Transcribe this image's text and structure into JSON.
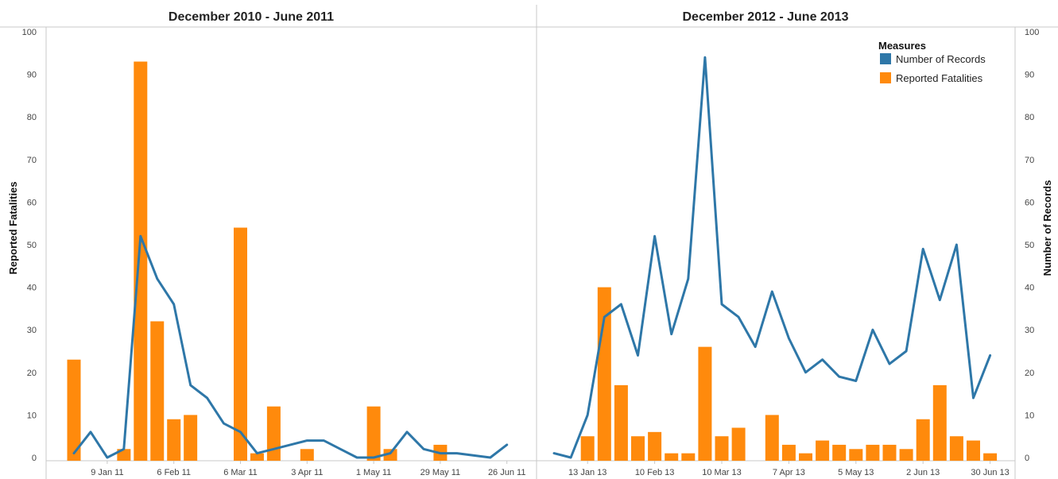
{
  "chart_data": {
    "type": "bar",
    "left_axis_title": "Reported Fatalities",
    "right_axis_title": "Number of Records",
    "y_ticks": [
      0,
      10,
      20,
      30,
      40,
      50,
      60,
      70,
      80,
      90,
      100
    ],
    "ylim": [
      0,
      100
    ],
    "legend": {
      "title": "Measures",
      "placement": "top-right",
      "items": [
        {
          "label": "Number of Records",
          "color": "#2e77a8"
        },
        {
          "label": "Reported Fatalities",
          "color": "#ff8a0c"
        }
      ]
    },
    "panels": [
      {
        "title": "December 2010 - June 2011",
        "x_start": "2010-12-26",
        "x_ticks": [
          "9 Jan 11",
          "6 Feb 11",
          "6 Mar 11",
          "3 Apr 11",
          "1 May 11",
          "29 May 11",
          "26 Jun 11"
        ],
        "bars": [
          {
            "x": "2010-12-26",
            "y": 23
          },
          {
            "x": "2011-01-16",
            "y": 2
          },
          {
            "x": "2011-01-23",
            "y": 93
          },
          {
            "x": "2011-01-30",
            "y": 32
          },
          {
            "x": "2011-02-06",
            "y": 9
          },
          {
            "x": "2011-02-13",
            "y": 10
          },
          {
            "x": "2011-03-06",
            "y": 54
          },
          {
            "x": "2011-03-13",
            "y": 1
          },
          {
            "x": "2011-03-20",
            "y": 12
          },
          {
            "x": "2011-04-03",
            "y": 2
          },
          {
            "x": "2011-05-01",
            "y": 12
          },
          {
            "x": "2011-05-08",
            "y": 2
          },
          {
            "x": "2011-05-29",
            "y": 3
          }
        ],
        "line": [
          {
            "x": "2010-12-26",
            "y": 1
          },
          {
            "x": "2011-01-02",
            "y": 6
          },
          {
            "x": "2011-01-09",
            "y": 0
          },
          {
            "x": "2011-01-16",
            "y": 2
          },
          {
            "x": "2011-01-23",
            "y": 52
          },
          {
            "x": "2011-01-30",
            "y": 42
          },
          {
            "x": "2011-02-06",
            "y": 36
          },
          {
            "x": "2011-02-13",
            "y": 17
          },
          {
            "x": "2011-02-20",
            "y": 14
          },
          {
            "x": "2011-02-27",
            "y": 8
          },
          {
            "x": "2011-03-06",
            "y": 6
          },
          {
            "x": "2011-03-13",
            "y": 1
          },
          {
            "x": "2011-03-20",
            "y": 2
          },
          {
            "x": "2011-03-27",
            "y": 3
          },
          {
            "x": "2011-04-03",
            "y": 4
          },
          {
            "x": "2011-04-10",
            "y": 4
          },
          {
            "x": "2011-04-17",
            "y": 2
          },
          {
            "x": "2011-04-24",
            "y": 0
          },
          {
            "x": "2011-05-01",
            "y": 0
          },
          {
            "x": "2011-05-08",
            "y": 1
          },
          {
            "x": "2011-05-15",
            "y": 6
          },
          {
            "x": "2011-05-22",
            "y": 2
          },
          {
            "x": "2011-05-29",
            "y": 1
          },
          {
            "x": "2011-06-05",
            "y": 1
          },
          {
            "x": "2011-06-19",
            "y": 0
          },
          {
            "x": "2011-06-26",
            "y": 3
          }
        ]
      },
      {
        "title": "December 2012 - June 2013",
        "x_start": "2012-12-30",
        "x_ticks": [
          "13 Jan 13",
          "10 Feb 13",
          "10 Mar 13",
          "7 Apr 13",
          "5 May 13",
          "2 Jun 13",
          "30 Jun 13"
        ],
        "bars": [
          {
            "x": "2013-01-13",
            "y": 5
          },
          {
            "x": "2013-01-20",
            "y": 40
          },
          {
            "x": "2013-01-27",
            "y": 17
          },
          {
            "x": "2013-02-03",
            "y": 5
          },
          {
            "x": "2013-02-10",
            "y": 6
          },
          {
            "x": "2013-02-17",
            "y": 1
          },
          {
            "x": "2013-02-24",
            "y": 1
          },
          {
            "x": "2013-03-03",
            "y": 26
          },
          {
            "x": "2013-03-10",
            "y": 5
          },
          {
            "x": "2013-03-17",
            "y": 7
          },
          {
            "x": "2013-03-31",
            "y": 10
          },
          {
            "x": "2013-04-07",
            "y": 3
          },
          {
            "x": "2013-04-14",
            "y": 1
          },
          {
            "x": "2013-04-21",
            "y": 4
          },
          {
            "x": "2013-04-28",
            "y": 3
          },
          {
            "x": "2013-05-05",
            "y": 2
          },
          {
            "x": "2013-05-12",
            "y": 3
          },
          {
            "x": "2013-05-19",
            "y": 3
          },
          {
            "x": "2013-05-26",
            "y": 2
          },
          {
            "x": "2013-06-02",
            "y": 9
          },
          {
            "x": "2013-06-09",
            "y": 17
          },
          {
            "x": "2013-06-16",
            "y": 5
          },
          {
            "x": "2013-06-23",
            "y": 4
          },
          {
            "x": "2013-06-30",
            "y": 1
          }
        ],
        "line": [
          {
            "x": "2012-12-30",
            "y": 1
          },
          {
            "x": "2013-01-06",
            "y": 0
          },
          {
            "x": "2013-01-13",
            "y": 10
          },
          {
            "x": "2013-01-20",
            "y": 33
          },
          {
            "x": "2013-01-27",
            "y": 36
          },
          {
            "x": "2013-02-03",
            "y": 24
          },
          {
            "x": "2013-02-10",
            "y": 52
          },
          {
            "x": "2013-02-17",
            "y": 29
          },
          {
            "x": "2013-02-24",
            "y": 42
          },
          {
            "x": "2013-03-03",
            "y": 94
          },
          {
            "x": "2013-03-10",
            "y": 36
          },
          {
            "x": "2013-03-17",
            "y": 33
          },
          {
            "x": "2013-03-24",
            "y": 26
          },
          {
            "x": "2013-03-31",
            "y": 39
          },
          {
            "x": "2013-04-07",
            "y": 28
          },
          {
            "x": "2013-04-14",
            "y": 20
          },
          {
            "x": "2013-04-21",
            "y": 23
          },
          {
            "x": "2013-04-28",
            "y": 19
          },
          {
            "x": "2013-05-05",
            "y": 18
          },
          {
            "x": "2013-05-12",
            "y": 30
          },
          {
            "x": "2013-05-19",
            "y": 22
          },
          {
            "x": "2013-05-26",
            "y": 25
          },
          {
            "x": "2013-06-02",
            "y": 49
          },
          {
            "x": "2013-06-09",
            "y": 37
          },
          {
            "x": "2013-06-16",
            "y": 50
          },
          {
            "x": "2013-06-23",
            "y": 14
          },
          {
            "x": "2013-06-30",
            "y": 24
          }
        ]
      }
    ]
  }
}
